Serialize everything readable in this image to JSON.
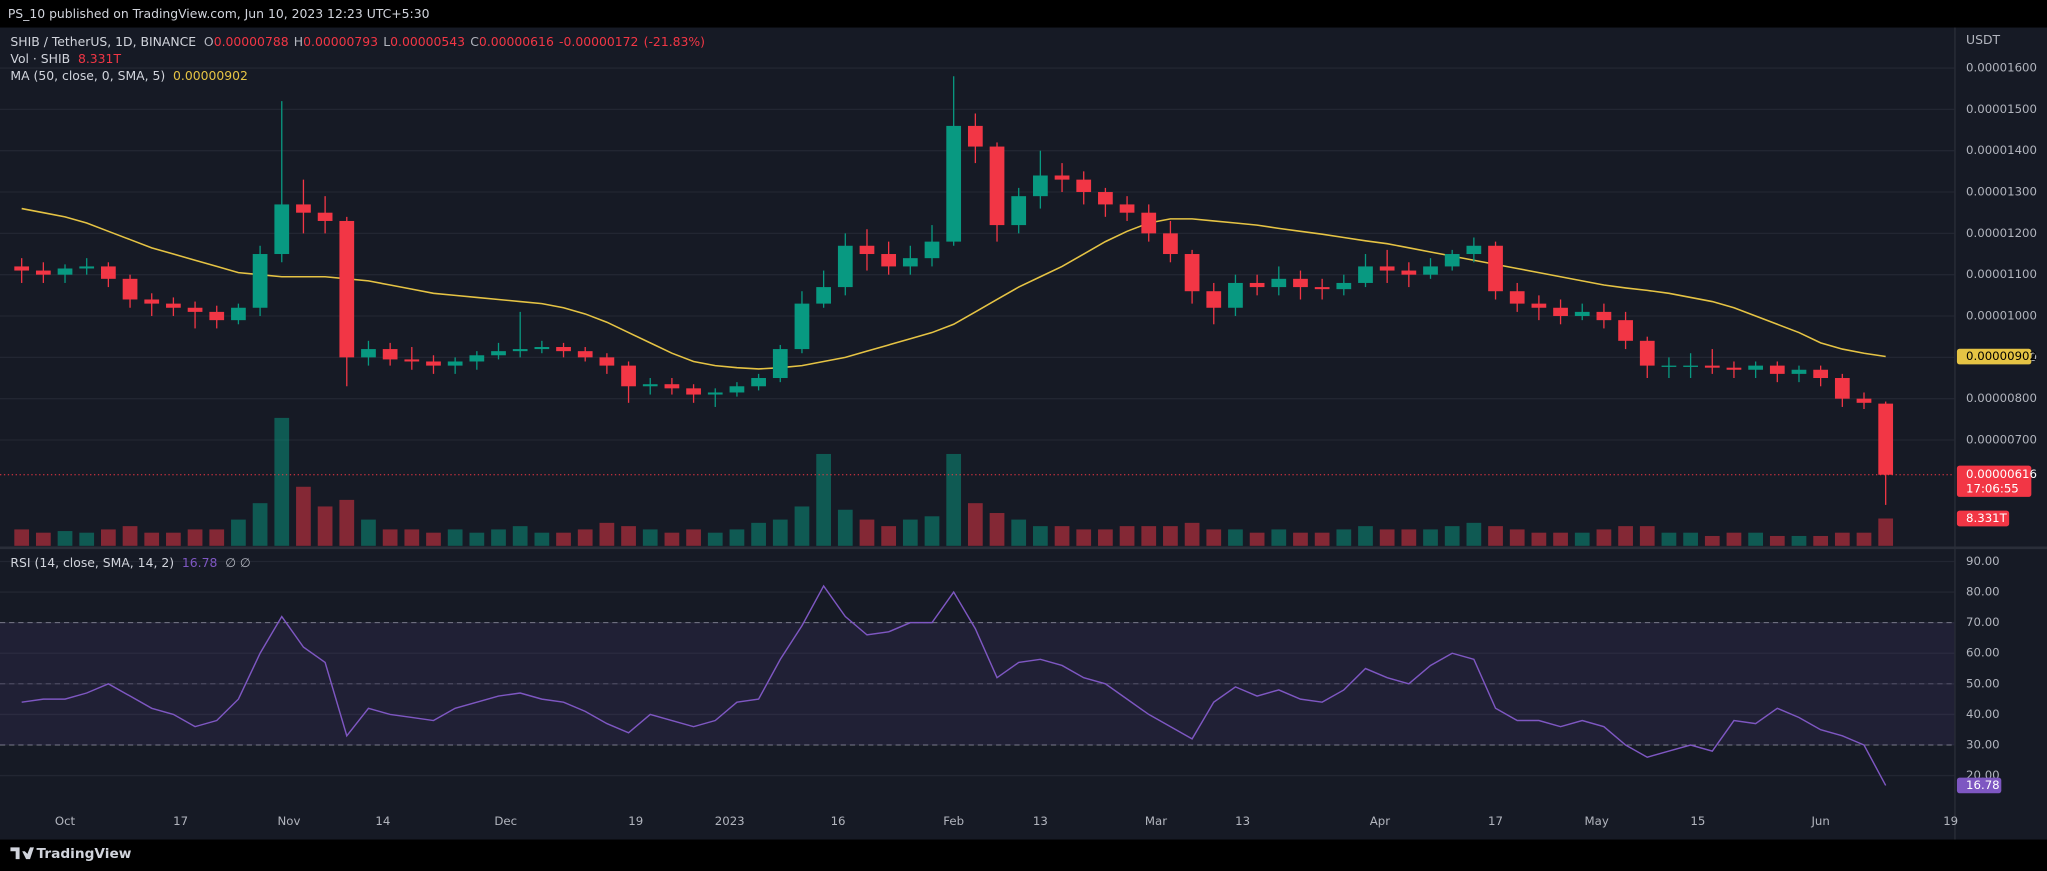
{
  "header": "PS_10 published on TradingView.com, Jun 10, 2023 12:23 UTC+5:30",
  "footer": "TradingView",
  "chart_data": {
    "type": "candlestick",
    "title": "SHIB / TetherUS, 1D, BINANCE",
    "y_unit": "USDT",
    "up_color": "#089981",
    "down_color": "#f23645",
    "grid": true,
    "x": [
      -6,
      -3,
      0,
      3,
      6,
      9,
      12,
      15,
      18,
      21,
      24,
      27,
      30,
      33,
      36,
      39,
      42,
      45,
      48,
      51,
      54,
      57,
      60,
      63,
      66,
      69,
      72,
      75,
      78,
      81,
      84,
      87,
      90,
      93,
      96,
      99,
      102,
      105,
      108,
      111,
      114,
      117,
      120,
      123,
      126,
      129,
      132,
      135,
      138,
      141,
      144,
      147,
      150,
      153,
      156,
      159,
      162,
      165,
      168,
      171,
      174,
      177,
      180,
      183,
      186,
      189,
      192,
      195,
      198,
      201,
      204,
      207,
      210,
      213,
      216,
      219,
      222,
      225,
      228,
      231,
      234,
      237,
      240,
      243,
      246,
      249,
      252
    ],
    "xlim": [
      -9,
      261.5
    ],
    "xticks": [
      {
        "value": 0,
        "label": "Oct"
      },
      {
        "value": 16,
        "label": "17"
      },
      {
        "value": 31,
        "label": "Nov"
      },
      {
        "value": 44,
        "label": "14"
      },
      {
        "value": 61,
        "label": "Dec"
      },
      {
        "value": 79,
        "label": "19"
      },
      {
        "value": 92,
        "label": "2023"
      },
      {
        "value": 107,
        "label": "16"
      },
      {
        "value": 123,
        "label": "Feb"
      },
      {
        "value": 135,
        "label": "13"
      },
      {
        "value": 151,
        "label": "Mar"
      },
      {
        "value": 163,
        "label": "13"
      },
      {
        "value": 182,
        "label": "Apr"
      },
      {
        "value": 198,
        "label": "17"
      },
      {
        "value": 212,
        "label": "May"
      },
      {
        "value": 226,
        "label": "15"
      },
      {
        "value": 243,
        "label": "Jun"
      },
      {
        "value": 261,
        "label": "19"
      }
    ],
    "ylim": [
      4.44e-06,
      1.698e-05
    ],
    "yticks": [
      {
        "value": 1.6e-05,
        "label": "0.00001600"
      },
      {
        "value": 1.5e-05,
        "label": "0.00001500"
      },
      {
        "value": 1.4e-05,
        "label": "0.00001400"
      },
      {
        "value": 1.3e-05,
        "label": "0.00001300"
      },
      {
        "value": 1.2e-05,
        "label": "0.00001200"
      },
      {
        "value": 1.1e-05,
        "label": "0.00001100"
      },
      {
        "value": 1e-05,
        "label": "0.00001000"
      },
      {
        "value": 9e-06,
        "label": "0.00000900"
      },
      {
        "value": 8e-06,
        "label": "0.00000800"
      },
      {
        "value": 7e-06,
        "label": "0.00000700"
      }
    ],
    "open": [
      1.12e-05,
      1.11e-05,
      1.1e-05,
      1.115e-05,
      1.12e-05,
      1.09e-05,
      1.04e-05,
      1.03e-05,
      1.02e-05,
      1.01e-05,
      9.9e-06,
      1.02e-05,
      1.15e-05,
      1.27e-05,
      1.25e-05,
      1.23e-05,
      9e-06,
      9.2e-06,
      8.95e-06,
      8.9e-06,
      8.8e-06,
      8.9e-06,
      9.05e-06,
      9.15e-06,
      9.2e-06,
      9.25e-06,
      9.15e-06,
      9e-06,
      8.8e-06,
      8.3e-06,
      8.35e-06,
      8.25e-06,
      8.1e-06,
      8.15e-06,
      8.3e-06,
      8.5e-06,
      9.2e-06,
      1.03e-05,
      1.07e-05,
      1.17e-05,
      1.15e-05,
      1.12e-05,
      1.14e-05,
      1.18e-05,
      1.46e-05,
      1.41e-05,
      1.22e-05,
      1.29e-05,
      1.34e-05,
      1.33e-05,
      1.3e-05,
      1.27e-05,
      1.25e-05,
      1.2e-05,
      1.15e-05,
      1.06e-05,
      1.02e-05,
      1.08e-05,
      1.07e-05,
      1.09e-05,
      1.07e-05,
      1.065e-05,
      1.08e-05,
      1.12e-05,
      1.11e-05,
      1.1e-05,
      1.12e-05,
      1.15e-05,
      1.17e-05,
      1.06e-05,
      1.03e-05,
      1.02e-05,
      1e-05,
      1.01e-05,
      9.9e-06,
      9.4e-06,
      8.8e-06,
      8.8e-06,
      8.8e-06,
      8.75e-06,
      8.7e-06,
      8.8e-06,
      8.6e-06,
      8.7e-06,
      8.5e-06,
      8e-06,
      7.88e-06
    ],
    "high": [
      1.14e-05,
      1.13e-05,
      1.125e-05,
      1.14e-05,
      1.13e-05,
      1.1e-05,
      1.055e-05,
      1.045e-05,
      1.035e-05,
      1.025e-05,
      1.03e-05,
      1.17e-05,
      1.52e-05,
      1.33e-05,
      1.29e-05,
      1.24e-05,
      9.4e-06,
      9.35e-06,
      9.25e-06,
      9.05e-06,
      9e-06,
      9.15e-06,
      9.35e-06,
      1.01e-05,
      9.4e-06,
      9.35e-06,
      9.25e-06,
      9.1e-06,
      8.9e-06,
      8.5e-06,
      8.5e-06,
      8.35e-06,
      8.25e-06,
      8.4e-06,
      8.6e-06,
      9.3e-06,
      1.06e-05,
      1.11e-05,
      1.2e-05,
      1.21e-05,
      1.18e-05,
      1.17e-05,
      1.22e-05,
      1.58e-05,
      1.49e-05,
      1.42e-05,
      1.31e-05,
      1.4e-05,
      1.37e-05,
      1.35e-05,
      1.31e-05,
      1.29e-05,
      1.27e-05,
      1.23e-05,
      1.16e-05,
      1.08e-05,
      1.1e-05,
      1.1e-05,
      1.12e-05,
      1.11e-05,
      1.09e-05,
      1.1e-05,
      1.15e-05,
      1.16e-05,
      1.13e-05,
      1.14e-05,
      1.16e-05,
      1.19e-05,
      1.18e-05,
      1.08e-05,
      1.05e-05,
      1.04e-05,
      1.03e-05,
      1.03e-05,
      1.01e-05,
      9.5e-06,
      9e-06,
      9.1e-06,
      9.2e-06,
      8.9e-06,
      8.9e-06,
      8.9e-06,
      8.8e-06,
      8.8e-06,
      8.6e-06,
      8.15e-06,
      7.93e-06
    ],
    "low": [
      1.08e-05,
      1.08e-05,
      1.08e-05,
      1.1e-05,
      1.07e-05,
      1.02e-05,
      1e-05,
      1e-05,
      9.7e-06,
      9.7e-06,
      9.8e-06,
      1e-05,
      1.13e-05,
      1.2e-05,
      1.2e-05,
      8.3e-06,
      8.8e-06,
      8.8e-06,
      8.7e-06,
      8.6e-06,
      8.6e-06,
      8.7e-06,
      8.95e-06,
      9e-06,
      9.1e-06,
      9e-06,
      8.9e-06,
      8.6e-06,
      7.9e-06,
      8.1e-06,
      8.1e-06,
      7.9e-06,
      7.8e-06,
      8.05e-06,
      8.2e-06,
      8.4e-06,
      9.1e-06,
      1.02e-05,
      1.05e-05,
      1.11e-05,
      1.1e-05,
      1.1e-05,
      1.12e-05,
      1.17e-05,
      1.37e-05,
      1.18e-05,
      1.2e-05,
      1.26e-05,
      1.3e-05,
      1.27e-05,
      1.24e-05,
      1.23e-05,
      1.18e-05,
      1.13e-05,
      1.03e-05,
      9.8e-06,
      1e-05,
      1.05e-05,
      1.05e-05,
      1.04e-05,
      1.04e-05,
      1.05e-05,
      1.07e-05,
      1.08e-05,
      1.07e-05,
      1.09e-05,
      1.11e-05,
      1.13e-05,
      1.04e-05,
      1.01e-05,
      9.9e-06,
      9.8e-06,
      9.9e-06,
      9.7e-06,
      9.2e-06,
      8.5e-06,
      8.5e-06,
      8.5e-06,
      8.6e-06,
      8.5e-06,
      8.5e-06,
      8.4e-06,
      8.4e-06,
      8.3e-06,
      7.8e-06,
      7.75e-06,
      5.43e-06
    ],
    "close": [
      1.11e-05,
      1.1e-05,
      1.115e-05,
      1.12e-05,
      1.09e-05,
      1.04e-05,
      1.03e-05,
      1.02e-05,
      1.01e-05,
      9.9e-06,
      1.02e-05,
      1.15e-05,
      1.27e-05,
      1.25e-05,
      1.23e-05,
      9e-06,
      9.2e-06,
      8.95e-06,
      8.9e-06,
      8.8e-06,
      8.9e-06,
      9.05e-06,
      9.15e-06,
      9.2e-06,
      9.25e-06,
      9.15e-06,
      9e-06,
      8.8e-06,
      8.3e-06,
      8.35e-06,
      8.25e-06,
      8.1e-06,
      8.15e-06,
      8.3e-06,
      8.5e-06,
      9.2e-06,
      1.03e-05,
      1.07e-05,
      1.17e-05,
      1.15e-05,
      1.12e-05,
      1.14e-05,
      1.18e-05,
      1.46e-05,
      1.41e-05,
      1.22e-05,
      1.29e-05,
      1.34e-05,
      1.33e-05,
      1.3e-05,
      1.27e-05,
      1.25e-05,
      1.2e-05,
      1.15e-05,
      1.06e-05,
      1.02e-05,
      1.08e-05,
      1.07e-05,
      1.09e-05,
      1.07e-05,
      1.065e-05,
      1.08e-05,
      1.12e-05,
      1.11e-05,
      1.1e-05,
      1.12e-05,
      1.15e-05,
      1.17e-05,
      1.06e-05,
      1.03e-05,
      1.02e-05,
      1e-05,
      1.01e-05,
      9.9e-06,
      9.4e-06,
      8.8e-06,
      8.8e-06,
      8.8e-06,
      8.75e-06,
      8.7e-06,
      8.8e-06,
      8.6e-06,
      8.7e-06,
      8.5e-06,
      8e-06,
      7.9e-06,
      6.16e-06
    ],
    "ohlc_labels": [
      "O",
      "H",
      "L",
      "C"
    ],
    "change": -1.72e-06,
    "change_percent": "(-21.83%)",
    "countdown": "17:06:55",
    "volume": {
      "name": "Vol · SHIB",
      "label": "8.331T",
      "ylim": [
        0,
        158000000000000.0
      ],
      "values": [
        5000000000000.0,
        4000000000000.0,
        4500000000000.0,
        4000000000000.0,
        5000000000000.0,
        6000000000000.0,
        4000000000000.0,
        4000000000000.0,
        5000000000000.0,
        5000000000000.0,
        8000000000000.0,
        13000000000000.0,
        39000000000000.0,
        18000000000000.0,
        12000000000000.0,
        14000000000000.0,
        8000000000000.0,
        5000000000000.0,
        5000000000000.0,
        4000000000000.0,
        5000000000000.0,
        4000000000000.0,
        5000000000000.0,
        6000000000000.0,
        4000000000000.0,
        4000000000000.0,
        5000000000000.0,
        7000000000000.0,
        6000000000000.0,
        5000000000000.0,
        4000000000000.0,
        5000000000000.0,
        4000000000000.0,
        5000000000000.0,
        7000000000000.0,
        8000000000000.0,
        12000000000000.0,
        28000000000000.0,
        11000000000000.0,
        8000000000000.0,
        6000000000000.0,
        8000000000000.0,
        9000000000000.0,
        28000000000000.0,
        13000000000000.0,
        10000000000000.0,
        8000000000000.0,
        6000000000000.0,
        6000000000000.0,
        5000000000000.0,
        5000000000000.0,
        6000000000000.0,
        6000000000000.0,
        6000000000000.0,
        7000000000000.0,
        5000000000000.0,
        5000000000000.0,
        4000000000000.0,
        5000000000000.0,
        4000000000000.0,
        4000000000000.0,
        5000000000000.0,
        6000000000000.0,
        5000000000000.0,
        5000000000000.0,
        5000000000000.0,
        6000000000000.0,
        7000000000000.0,
        6000000000000.0,
        5000000000000.0,
        4000000000000.0,
        4000000000000.0,
        4000000000000.0,
        5000000000000.0,
        6000000000000.0,
        6000000000000.0,
        4000000000000.0,
        4000000000000.0,
        3000000000000.0,
        4000000000000.0,
        4000000000000.0,
        3000000000000.0,
        3000000000000.0,
        3000000000000.0,
        4000000000000.0,
        4000000000000.0,
        8331000000000.0
      ]
    },
    "ma": {
      "name": "MA (50, close, 0, SMA, 5)",
      "color": "#e5c344",
      "values": [
        1.26e-05,
        1.25e-05,
        1.24e-05,
        1.225e-05,
        1.205e-05,
        1.185e-05,
        1.165e-05,
        1.15e-05,
        1.135e-05,
        1.12e-05,
        1.105e-05,
        1.1e-05,
        1.095e-05,
        1.095e-05,
        1.095e-05,
        1.09e-05,
        1.085e-05,
        1.075e-05,
        1.065e-05,
        1.055e-05,
        1.05e-05,
        1.045e-05,
        1.04e-05,
        1.035e-05,
        1.03e-05,
        1.02e-05,
        1.005e-05,
        9.85e-06,
        9.6e-06,
        9.35e-06,
        9.1e-06,
        8.9e-06,
        8.8e-06,
        8.75e-06,
        8.72e-06,
        8.75e-06,
        8.8e-06,
        8.9e-06,
        9e-06,
        9.15e-06,
        9.3e-06,
        9.45e-06,
        9.6e-06,
        9.8e-06,
        1.01e-05,
        1.04e-05,
        1.07e-05,
        1.095e-05,
        1.12e-05,
        1.15e-05,
        1.18e-05,
        1.205e-05,
        1.225e-05,
        1.235e-05,
        1.235e-05,
        1.23e-05,
        1.225e-05,
        1.22e-05,
        1.212e-05,
        1.205e-05,
        1.198e-05,
        1.19e-05,
        1.182e-05,
        1.175e-05,
        1.165e-05,
        1.155e-05,
        1.145e-05,
        1.135e-05,
        1.125e-05,
        1.115e-05,
        1.105e-05,
        1.095e-05,
        1.085e-05,
        1.075e-05,
        1.068e-05,
        1.062e-05,
        1.055e-05,
        1.045e-05,
        1.035e-05,
        1.02e-05,
        1e-05,
        9.8e-06,
        9.6e-06,
        9.35e-06,
        9.2e-06,
        9.1e-06,
        9.02e-06
      ]
    },
    "rsi": {
      "name": "RSI (14, close, SMA, 14, 2)",
      "extra": "∅ ∅",
      "color": "#7e57c2",
      "ylim": [
        9.76,
        93.84
      ],
      "bands": [
        30,
        70
      ],
      "midline": 50,
      "yticks": [
        {
          "value": 90,
          "label": "90.00"
        },
        {
          "value": 80,
          "label": "80.00"
        },
        {
          "value": 70,
          "label": "70.00"
        },
        {
          "value": 60,
          "label": "60.00"
        },
        {
          "value": 50,
          "label": "50.00"
        },
        {
          "value": 40,
          "label": "40.00"
        },
        {
          "value": 30,
          "label": "30.00"
        },
        {
          "value": 20,
          "label": "20.00"
        }
      ],
      "values": [
        44,
        45,
        45,
        47,
        50,
        46,
        42,
        40,
        36,
        38,
        45,
        60,
        72,
        62,
        57,
        33,
        42,
        40,
        39,
        38,
        42,
        44,
        46,
        47,
        45,
        44,
        41,
        37,
        34,
        40,
        38,
        36,
        38,
        44,
        45,
        58,
        69,
        82,
        72,
        66,
        67,
        70,
        70,
        80,
        68,
        52,
        57,
        58,
        56,
        52,
        50,
        45,
        40,
        36,
        32,
        44,
        49,
        46,
        48,
        45,
        44,
        48,
        55,
        52,
        50,
        56,
        60,
        58,
        42,
        38,
        38,
        36,
        38,
        36,
        30,
        26,
        28,
        30,
        28,
        38,
        37,
        42,
        39,
        35,
        33,
        30,
        16.78
      ]
    }
  }
}
